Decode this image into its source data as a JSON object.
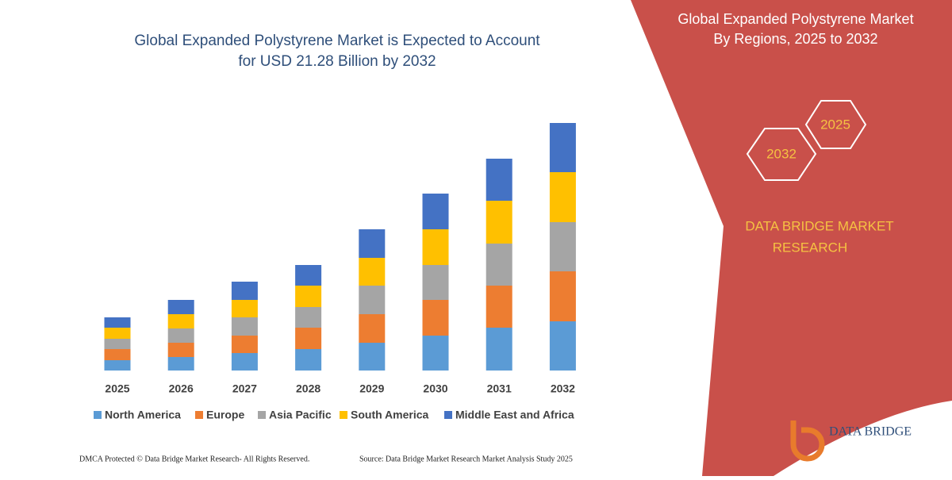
{
  "chart_data": {
    "type": "stacked-bar",
    "title": [
      "Global Expanded Polystyrene Market is Expected to Account",
      "for USD 21.28 Billion by 2032"
    ],
    "categories": [
      "2025",
      "2026",
      "2027",
      "2028",
      "2029",
      "2030",
      "2031",
      "2032"
    ],
    "series": [
      {
        "name": "North America",
        "color": "#5b9bd5",
        "values": [
          13,
          17,
          22,
          27,
          35,
          44,
          54,
          62
        ]
      },
      {
        "name": "Europe",
        "color": "#ed7d31",
        "values": [
          14,
          18,
          22,
          27,
          36,
          45,
          53,
          63
        ]
      },
      {
        "name": "Asia Pacific",
        "color": "#a5a5a5",
        "values": [
          13,
          18,
          23,
          26,
          36,
          44,
          53,
          62
        ]
      },
      {
        "name": "South America",
        "color": "#ffc000",
        "values": [
          14,
          18,
          22,
          27,
          35,
          45,
          54,
          63
        ]
      },
      {
        "name": "Middle East and Africa",
        "color": "#4472c4",
        "values": [
          13,
          18,
          23,
          26,
          36,
          45,
          53,
          62
        ]
      }
    ],
    "legend": "bottom"
  },
  "panel": {
    "title": [
      "Global Expanded Polystyrene Market",
      "By Regions, 2025 to 2032"
    ],
    "hexagons": [
      "2025",
      "2032"
    ],
    "brand": [
      "DATA BRIDGE MARKET",
      "RESEARCH"
    ],
    "logo": "DATA BRIDGE"
  },
  "footer": {
    "left": "DMCA Protected © Data Bridge Market Research- All Rights Reserved.",
    "right": "Source: Data Bridge Market Research Market Analysis Study 2025"
  }
}
